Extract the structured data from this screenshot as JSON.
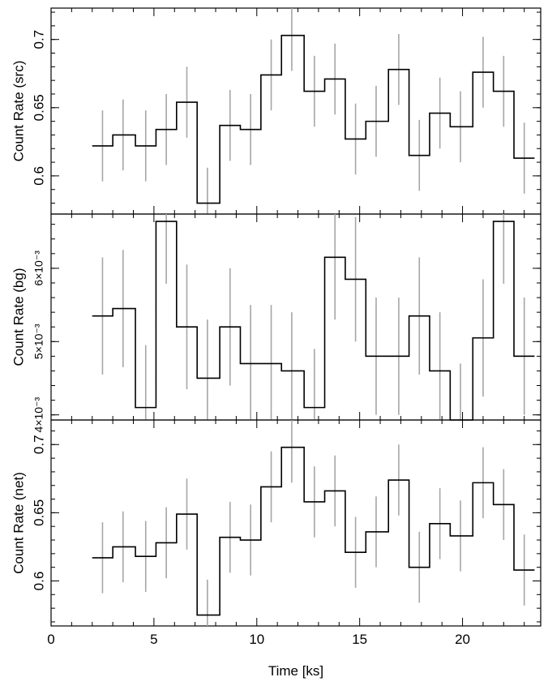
{
  "chart_data": {
    "type": "line",
    "xlabel": "Time [ks]",
    "xlim": [
      0,
      23.8
    ],
    "x_ticks": [
      0,
      5,
      10,
      15,
      20
    ],
    "bin_edges": [
      2.0,
      3.0,
      4.1,
      5.1,
      6.1,
      7.1,
      8.2,
      9.2,
      10.2,
      11.2,
      12.3,
      13.3,
      14.3,
      15.3,
      16.4,
      17.4,
      18.4,
      19.4,
      20.5,
      21.5,
      22.5,
      23.5
    ],
    "bin_centers": [
      2.5,
      3.5,
      4.6,
      5.6,
      6.6,
      7.6,
      8.7,
      9.7,
      10.7,
      11.7,
      12.8,
      13.8,
      14.8,
      15.8,
      16.9,
      17.9,
      18.9,
      19.9,
      21.0,
      22.0,
      23.0
    ],
    "panels": [
      {
        "id": "src",
        "ylabel": "Count Rate (src)",
        "ylim": [
          0.572,
          0.723
        ],
        "ticks": [
          {
            "v": 0.6,
            "label": "0.6"
          },
          {
            "v": 0.65,
            "label": "0.65"
          },
          {
            "v": 0.7,
            "label": "0.7"
          }
        ],
        "values": [
          0.622,
          0.63,
          0.622,
          0.634,
          0.654,
          0.58,
          0.637,
          0.634,
          0.674,
          0.703,
          0.662,
          0.671,
          0.627,
          0.64,
          0.678,
          0.615,
          0.646,
          0.636,
          0.676,
          0.662,
          0.613
        ],
        "errors": [
          0.026,
          0.026,
          0.026,
          0.026,
          0.026,
          0.026,
          0.026,
          0.026,
          0.026,
          0.026,
          0.026,
          0.026,
          0.026,
          0.026,
          0.026,
          0.026,
          0.026,
          0.026,
          0.026,
          0.026,
          0.026
        ]
      },
      {
        "id": "bg",
        "ylabel": "Count Rate (bg)",
        "ylim": [
          0.00393,
          0.00674
        ],
        "ticks": [
          {
            "v": 0.004,
            "label": "4×10⁻³"
          },
          {
            "v": 0.005,
            "label": "5×10⁻³"
          },
          {
            "v": 0.006,
            "label": "6×10⁻³"
          }
        ],
        "values": [
          0.00535,
          0.00545,
          0.0041,
          0.00664,
          0.0052,
          0.0045,
          0.0052,
          0.0047,
          0.0047,
          0.0046,
          0.0041,
          0.00615,
          0.00585,
          0.0048,
          0.0048,
          0.00535,
          0.0046,
          0.0039,
          0.00505,
          0.00664,
          0.0048
        ],
        "errors": [
          0.0008,
          0.0008,
          0.00085,
          0.00085,
          0.00085,
          0.0008,
          0.0008,
          0.0008,
          0.0008,
          0.0008,
          0.0008,
          0.00085,
          0.00085,
          0.0008,
          0.0008,
          0.0008,
          0.0008,
          0.0008,
          0.0008,
          0.00085,
          0.0008
        ]
      },
      {
        "id": "net",
        "ylabel": "Count Rate (net)",
        "ylim": [
          0.567,
          0.718
        ],
        "ticks": [
          {
            "v": 0.6,
            "label": "0.6"
          },
          {
            "v": 0.65,
            "label": "0.65"
          },
          {
            "v": 0.7,
            "label": "0.7"
          }
        ],
        "values": [
          0.617,
          0.625,
          0.618,
          0.628,
          0.649,
          0.575,
          0.632,
          0.63,
          0.669,
          0.698,
          0.658,
          0.666,
          0.621,
          0.636,
          0.674,
          0.61,
          0.642,
          0.633,
          0.672,
          0.656,
          0.608
        ],
        "errors": [
          0.026,
          0.026,
          0.026,
          0.026,
          0.026,
          0.026,
          0.026,
          0.026,
          0.026,
          0.026,
          0.026,
          0.026,
          0.026,
          0.026,
          0.026,
          0.026,
          0.026,
          0.026,
          0.026,
          0.026,
          0.026
        ]
      }
    ]
  }
}
